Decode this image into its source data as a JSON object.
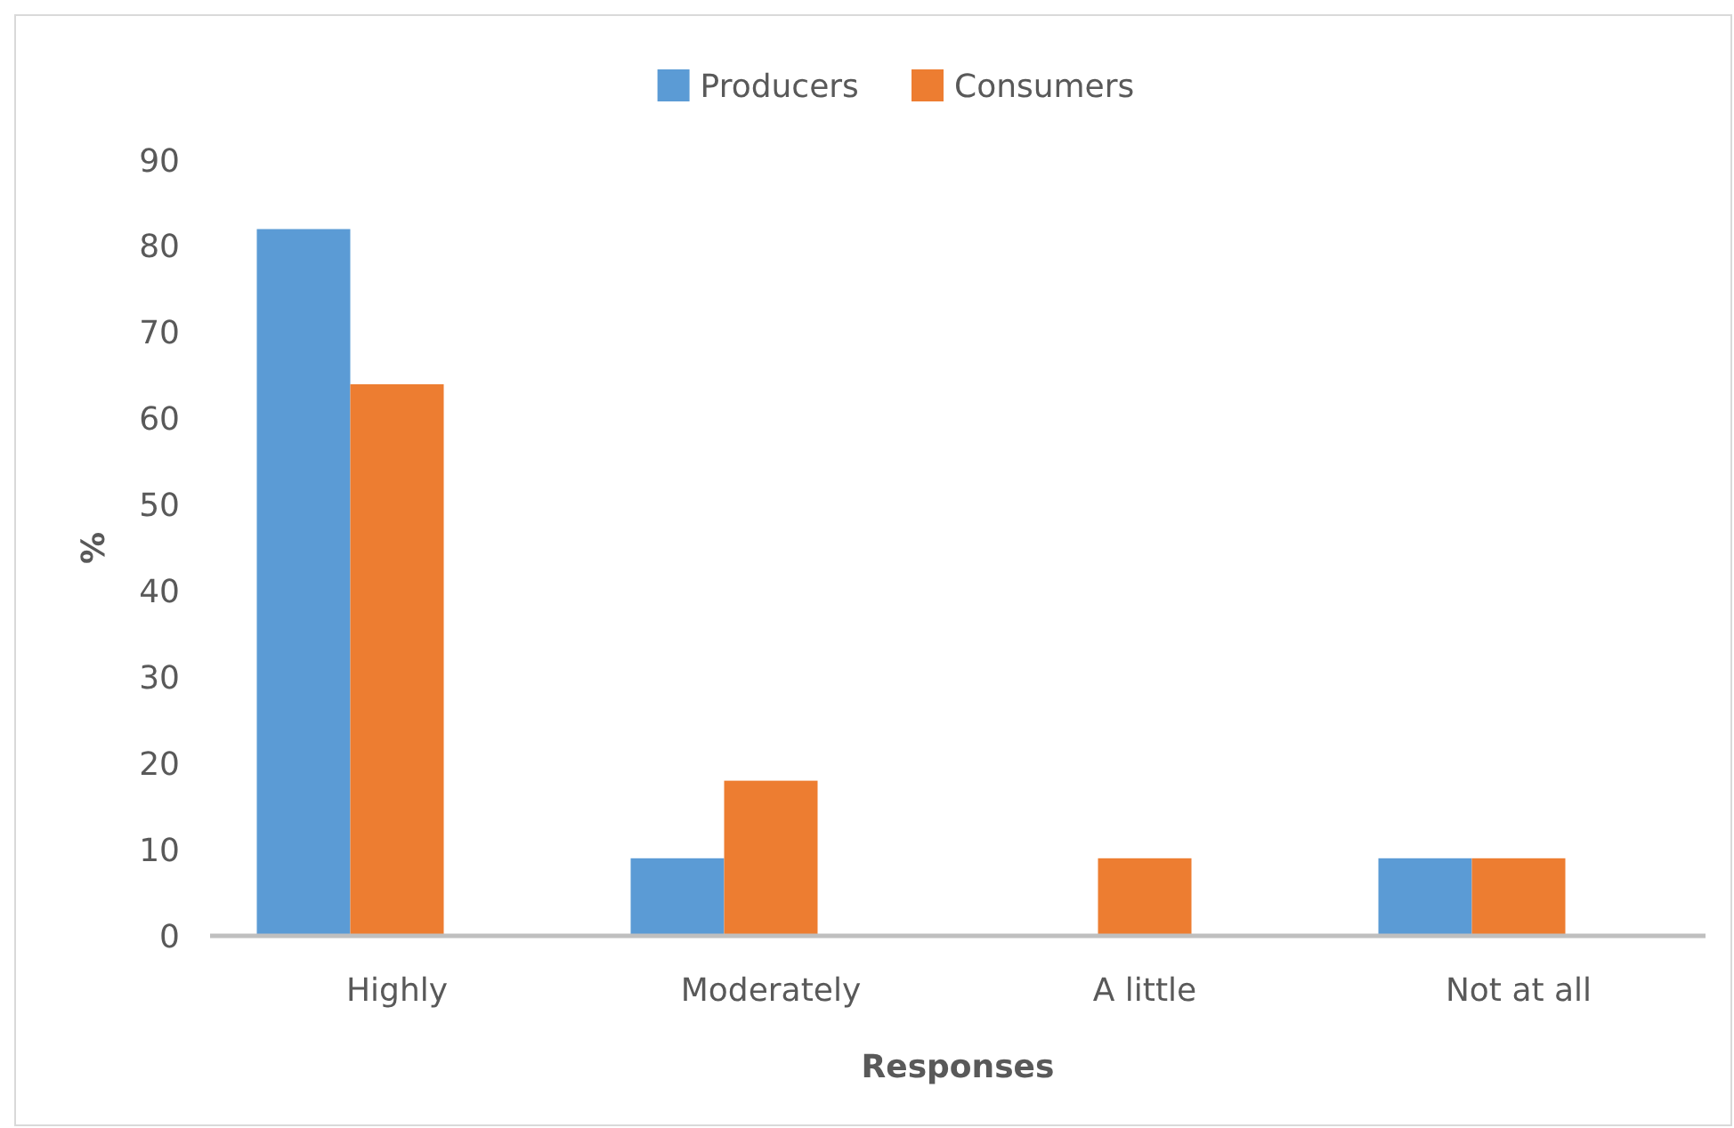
{
  "chart_data": {
    "type": "bar",
    "xlabel": "Responses",
    "ylabel": "%",
    "categories": [
      "Highly",
      "Moderately",
      "A little",
      "Not at all"
    ],
    "series": [
      {
        "name": "Producers",
        "color": "#5b9bd5",
        "values": [
          82,
          9,
          null,
          9
        ]
      },
      {
        "name": "Consumers",
        "color": "#ed7d31",
        "values": [
          64,
          18,
          9,
          9
        ]
      }
    ],
    "ylim": [
      0,
      90
    ],
    "yticks": [
      0,
      10,
      20,
      30,
      40,
      50,
      60,
      70,
      80,
      90
    ],
    "legend": "top"
  }
}
